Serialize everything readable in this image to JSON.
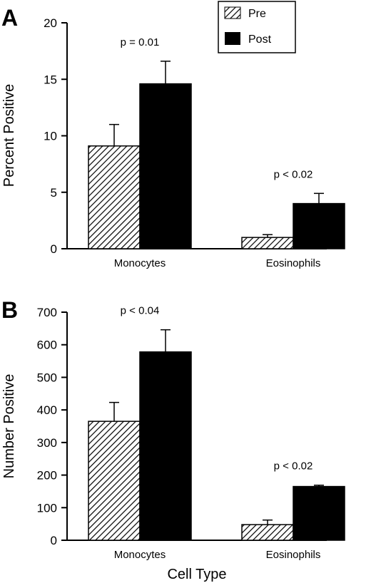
{
  "colors": {
    "pre": "hatched",
    "post": "#000000",
    "axis": "#000000"
  },
  "legend": {
    "pre": "Pre",
    "post": "Post"
  },
  "chart_data": [
    {
      "type": "bar",
      "panel": "A",
      "categories": [
        "Monocytes",
        "Eosinophils"
      ],
      "series": [
        {
          "name": "Pre",
          "values": [
            9.1,
            1.0
          ],
          "errors": [
            1.9,
            0.25
          ]
        },
        {
          "name": "Post",
          "values": [
            14.6,
            4.0
          ],
          "errors": [
            2.0,
            0.9
          ]
        }
      ],
      "annotations": [
        "p = 0.01",
        "p < 0.02"
      ],
      "ylabel": "Percent Positive",
      "xlabel": "",
      "ylim": [
        0,
        20
      ],
      "yticks": [
        "0",
        "5",
        "10",
        "15",
        "20"
      ],
      "legend_position": "top-right"
    },
    {
      "type": "bar",
      "panel": "B",
      "categories": [
        "Monocytes",
        "Eosinophils"
      ],
      "series": [
        {
          "name": "Pre",
          "values": [
            365,
            48
          ],
          "errors": [
            58,
            14
          ]
        },
        {
          "name": "Post",
          "values": [
            578,
            165
          ],
          "errors": [
            68,
            4
          ]
        }
      ],
      "annotations": [
        "p < 0.04",
        "p < 0.02"
      ],
      "ylabel": "Number Positive",
      "xlabel": "Cell Type",
      "ylim": [
        0,
        700
      ],
      "yticks": [
        "0",
        "100",
        "200",
        "300",
        "400",
        "500",
        "600",
        "700"
      ]
    }
  ]
}
